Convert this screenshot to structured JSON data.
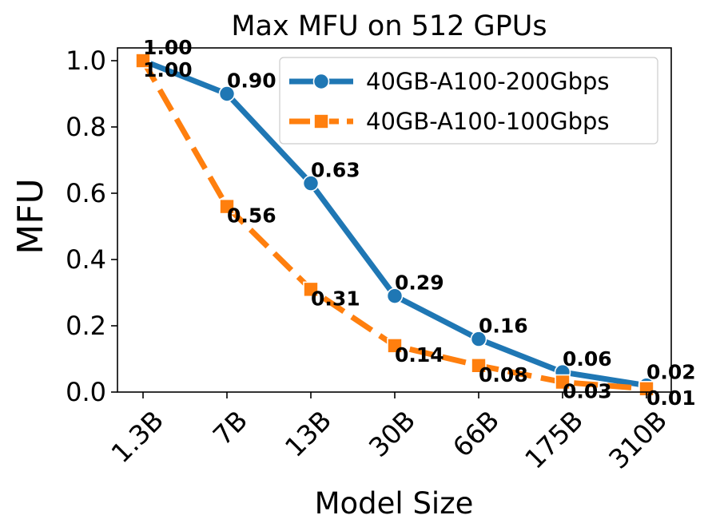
{
  "chart_data": {
    "type": "line",
    "title": "Max MFU on 512 GPUs",
    "xlabel": "Model Size",
    "ylabel": "MFU",
    "categories": [
      "1.3B",
      "7B",
      "13B",
      "30B",
      "66B",
      "175B",
      "310B"
    ],
    "ylim": [
      0.0,
      1.0
    ],
    "yticks": [
      "0.0",
      "0.2",
      "0.4",
      "0.6",
      "0.8",
      "1.0"
    ],
    "legend_position": "top-right",
    "grid": false,
    "series": [
      {
        "name": "40GB-A100-200Gbps",
        "color": "#1f77b4",
        "marker": "circle",
        "linestyle": "solid",
        "values": [
          1.0,
          0.9,
          0.63,
          0.29,
          0.16,
          0.06,
          0.02
        ],
        "labels": [
          "1.00",
          "0.90",
          "0.63",
          "0.29",
          "0.16",
          "0.06",
          "0.02"
        ]
      },
      {
        "name": "40GB-A100-100Gbps",
        "color": "#ff7f0e",
        "marker": "square",
        "linestyle": "dashed",
        "values": [
          1.0,
          0.56,
          0.31,
          0.14,
          0.08,
          0.03,
          0.01
        ],
        "labels": [
          "1.00",
          "0.56",
          "0.31",
          "0.14",
          "0.08",
          "0.03",
          "0.01"
        ]
      }
    ]
  }
}
